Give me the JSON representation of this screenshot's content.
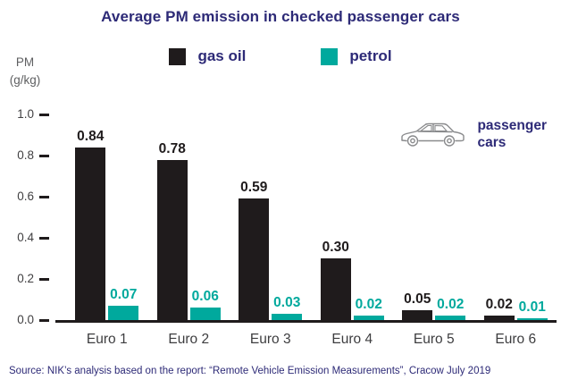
{
  "title": "Average PM emission in checked passenger cars",
  "y_axis_unit": {
    "line1": "PM",
    "line2": "(g/kg)"
  },
  "legend": {
    "items": [
      {
        "label": "gas oil",
        "color": "#1f1b1c"
      },
      {
        "label": "petrol",
        "color": "#00a99d"
      }
    ]
  },
  "annotation": {
    "line1": "passenger",
    "line2": "cars"
  },
  "source": "Source: NIK’s analysis based on the report: “Remote Vehicle Emission Measurements”, Cracow July 2019",
  "colors": {
    "accent_navy": "#2d2a77",
    "teal": "#00a99d",
    "bar_black": "#1f1b1c",
    "axis_gray": "#414042"
  },
  "chart_data": {
    "type": "bar",
    "title": "Average PM emission in checked passenger cars",
    "categories": [
      "Euro 1",
      "Euro 2",
      "Euro 3",
      "Euro 4",
      "Euro 5",
      "Euro 6"
    ],
    "series": [
      {
        "name": "gas oil",
        "color": "#1f1b1c",
        "label_color": "#1f1b1c",
        "values": [
          0.84,
          0.78,
          0.59,
          0.3,
          0.05,
          0.02
        ],
        "labels": [
          "0.84",
          "0.78",
          "0.59",
          "0.30",
          "0.05",
          "0.02"
        ]
      },
      {
        "name": "petrol",
        "color": "#00a99d",
        "label_color": "#00a99d",
        "values": [
          0.07,
          0.06,
          0.03,
          0.02,
          0.02,
          0.01
        ],
        "labels": [
          "0.07",
          "0.06",
          "0.03",
          "0.02",
          "0.02",
          "0.01"
        ]
      }
    ],
    "xlabel": "",
    "ylabel": "PM (g/kg)",
    "ylim": [
      0,
      1.0
    ],
    "yticks": [
      {
        "value": 0.0,
        "label": "0.0"
      },
      {
        "value": 0.2,
        "label": "0.2"
      },
      {
        "value": 0.4,
        "label": "0.4"
      },
      {
        "value": 0.6,
        "label": "0.6"
      },
      {
        "value": 0.8,
        "label": "0.8"
      },
      {
        "value": 1.0,
        "label": "1.0"
      }
    ],
    "grid": false,
    "legend_position": "top"
  }
}
